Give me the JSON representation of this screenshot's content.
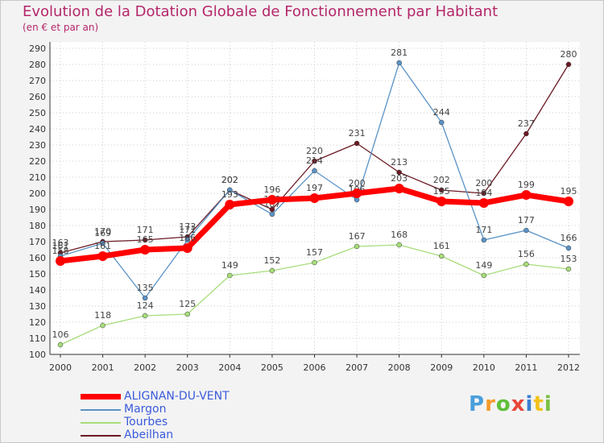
{
  "title": "Evolution de la Dotation Globale de Fonctionnement par Habitant",
  "subtitle": "(en € et par an)",
  "logo_text": "Proxiti",
  "colors": {
    "title": "#b5276a",
    "axis": "#333333",
    "grid": "#cccccc",
    "background": "#ffffff"
  },
  "chart_data": {
    "type": "line",
    "title": "Evolution de la Dotation Globale de Fonctionnement par Habitant",
    "subtitle": "(en € et par an)",
    "xlabel": "",
    "ylabel": "",
    "ylim": [
      100,
      290
    ],
    "yticks": [
      100,
      110,
      120,
      130,
      140,
      150,
      160,
      170,
      180,
      190,
      200,
      210,
      220,
      230,
      240,
      250,
      260,
      270,
      280,
      290
    ],
    "grid": true,
    "legend": "bottom-left",
    "x": [
      "2000",
      "2001",
      "2002",
      "2003",
      "2004",
      "2005",
      "2006",
      "2007",
      "2008",
      "2009",
      "2010",
      "2011",
      "2012"
    ],
    "series": [
      {
        "name": "Abeilhan",
        "color": "#6b1a24",
        "values": [
          163,
          170,
          171,
          173,
          202,
          190,
          220,
          231,
          213,
          202,
          200,
          237,
          280
        ]
      },
      {
        "name": "Tourbes",
        "color": "#a7dd7a",
        "values": [
          106,
          118,
          124,
          125,
          149,
          152,
          157,
          167,
          168,
          161,
          149,
          156,
          153
        ]
      },
      {
        "name": "Margon",
        "color": "#5a93c6",
        "values": [
          161,
          169,
          135,
          171,
          202,
          187,
          214,
          196,
          281,
          244,
          171,
          177,
          166
        ]
      },
      {
        "name": "ALIGNAN-DU-VENT",
        "color": "#ff0000",
        "values": [
          158,
          161,
          165,
          166,
          193,
          196,
          197,
          200,
          203,
          195,
          194,
          199,
          195
        ]
      }
    ],
    "legend_entries": [
      "ALIGNAN-DU-VENT",
      "Margon",
      "Tourbes",
      "Abeilhan"
    ]
  }
}
